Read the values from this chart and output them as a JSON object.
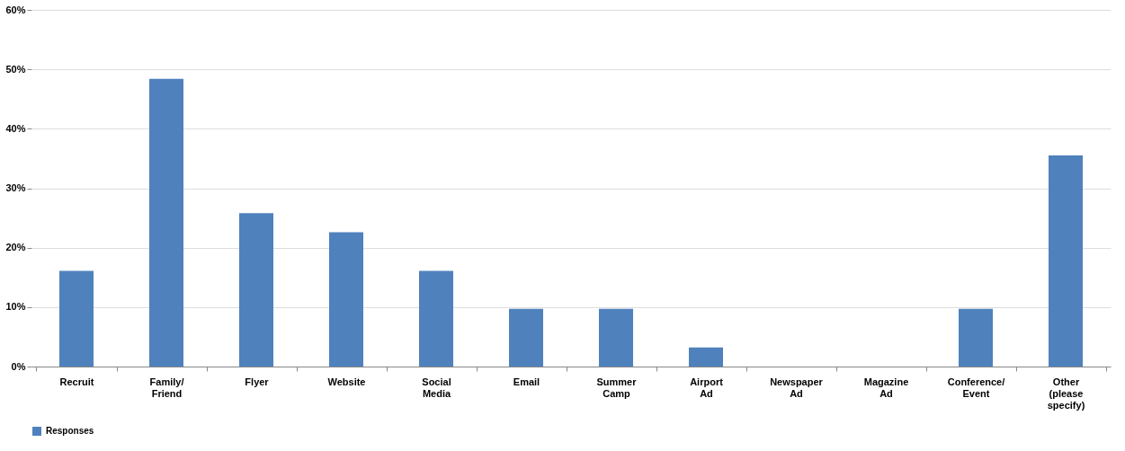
{
  "chart_data": {
    "type": "bar",
    "categories": [
      "Recruit",
      "Family/ Friend",
      "Flyer",
      "Website",
      "Social Media",
      "Email",
      "Summer Camp",
      "Airport Ad",
      "Newspaper Ad",
      "Magazine Ad",
      "Conference/ Event",
      "Other (please specify)"
    ],
    "series": [
      {
        "name": "Responses",
        "color": "#4f81bd",
        "values": [
          16.1,
          48.4,
          25.8,
          22.6,
          16.1,
          9.7,
          9.7,
          3.2,
          0,
          0,
          9.7,
          35.5
        ]
      }
    ],
    "ylim": [
      0,
      60
    ],
    "yticks": [
      {
        "value": 0,
        "label": "0%"
      },
      {
        "value": 10,
        "label": "10%"
      },
      {
        "value": 20,
        "label": "20%"
      },
      {
        "value": 30,
        "label": "30%"
      },
      {
        "value": 40,
        "label": "40%"
      },
      {
        "value": 50,
        "label": "50%"
      },
      {
        "value": 60,
        "label": "60%"
      }
    ],
    "grid": "y",
    "legend": "bottom"
  }
}
